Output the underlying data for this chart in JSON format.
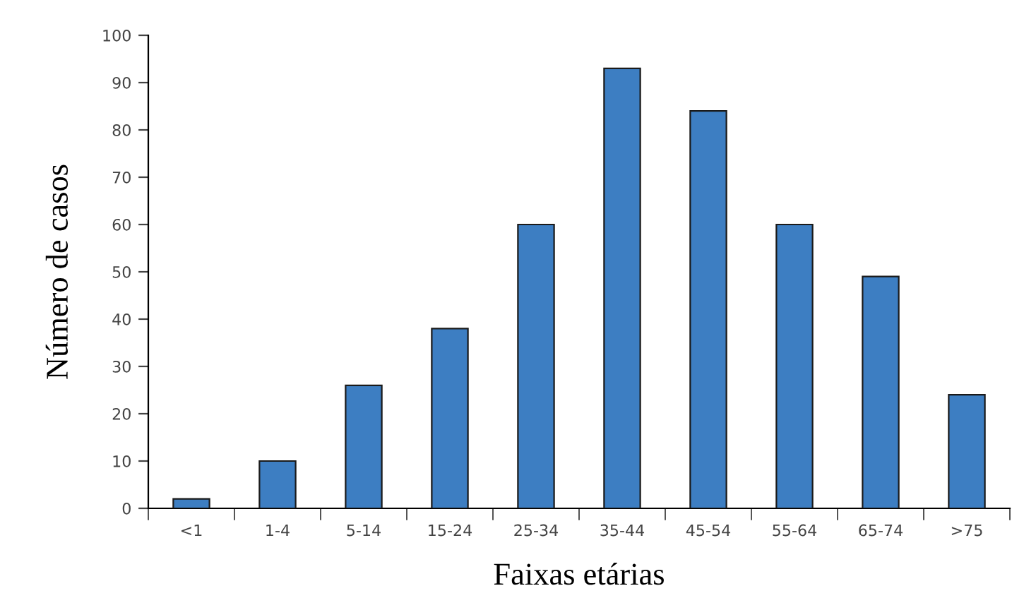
{
  "chart_data": {
    "type": "bar",
    "xlabel": "Faixas etárias",
    "ylabel": "Número de casos",
    "categories": [
      "<1",
      "1-4",
      "5-14",
      "15-24",
      "25-34",
      "35-44",
      "45-54",
      "55-64",
      "65-74",
      ">75"
    ],
    "values": [
      2,
      10,
      26,
      38,
      60,
      93,
      84,
      60,
      49,
      24
    ],
    "color": "#3d7ec2",
    "ylim": [
      0,
      100
    ],
    "yticks": [
      0,
      10,
      20,
      30,
      40,
      50,
      60,
      70,
      80,
      90,
      100
    ],
    "grid": false,
    "legend": false
  }
}
